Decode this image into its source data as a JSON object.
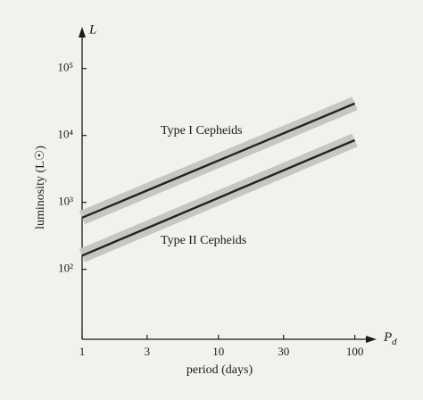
{
  "chart_data": {
    "type": "line",
    "x_axis_label": "period (days)",
    "y_axis_label": "luminosity (L☉)",
    "y_symbol": "L",
    "x_symbol": "P",
    "x_symbol_subscript": "d",
    "x": [
      1,
      100
    ],
    "series": [
      {
        "name": "Type I Cepheids",
        "color": "#222222",
        "values": [
          590,
          30000
        ]
      },
      {
        "name": "Type II Cepheids",
        "color": "#222222",
        "values": [
          160,
          8500
        ]
      }
    ],
    "xlim": [
      1,
      130
    ],
    "ylim": [
      9,
      360000
    ],
    "xticks": [
      1,
      3,
      10,
      30,
      100
    ],
    "yticks": [
      {
        "value": 100,
        "label": "10²"
      },
      {
        "value": 1000,
        "label": "10³"
      },
      {
        "value": 10000,
        "label": "10⁴"
      },
      {
        "value": 100000,
        "label": "10⁵"
      }
    ],
    "log_x": true,
    "log_y": true,
    "band_color": "#c8c6c2"
  }
}
